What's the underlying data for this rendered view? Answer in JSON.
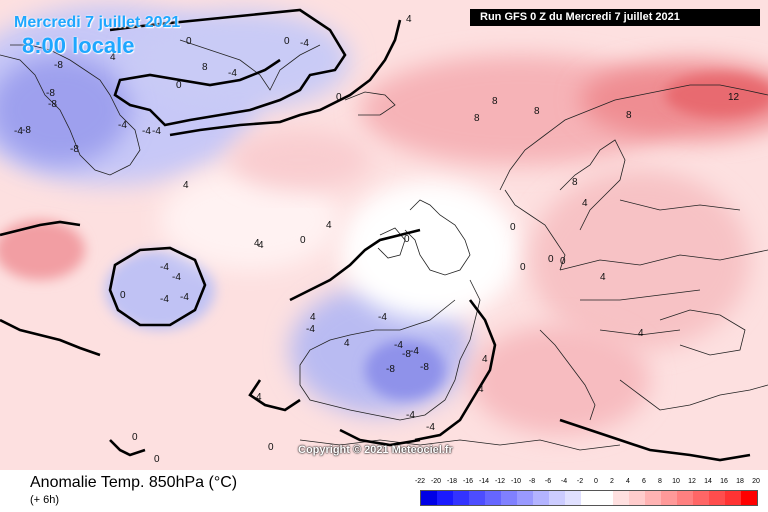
{
  "header": {
    "date_line": "Mercredi 7 juillet 2021",
    "local_time": "8:00 locale",
    "run_info": "Run GFS 0 Z du Mercredi 7 juillet 2021"
  },
  "footer": {
    "variable_title": "Anomalie Temp. 850hPa (°C)",
    "lead_time": "(+ 6h)",
    "copyright": "Copyright © 2021 Meteociel.fr"
  },
  "legend": {
    "ticks": [
      "-22",
      "-20",
      "-18",
      "-16",
      "-14",
      "-12",
      "-10",
      "-8",
      "-6",
      "-4",
      "-2",
      "0",
      "2",
      "4",
      "6",
      "8",
      "10",
      "12",
      "14",
      "16",
      "18",
      "20"
    ],
    "colors": [
      "#0000e6",
      "#1a1aff",
      "#3333ff",
      "#4d4dff",
      "#6666ff",
      "#8080ff",
      "#9999ff",
      "#b3b3ff",
      "#ccccff",
      "#e0e0ff",
      "#ffffff",
      "#ffffff",
      "#ffe0e0",
      "#ffcccc",
      "#ffb3b3",
      "#ff9999",
      "#ff8080",
      "#ff6666",
      "#ff4d4d",
      "#ff3333",
      "#ff0000"
    ]
  },
  "contour_labels": [
    {
      "text": "0"
    },
    {
      "text": "-8"
    },
    {
      "text": "-8"
    },
    {
      "text": "-8"
    },
    {
      "text": "-8"
    },
    {
      "text": "-8"
    },
    {
      "text": "-4"
    },
    {
      "text": "-4"
    },
    {
      "text": "-4"
    },
    {
      "text": "0"
    },
    {
      "text": "-4"
    },
    {
      "text": "-4"
    },
    {
      "text": "-4"
    },
    {
      "text": "-4"
    },
    {
      "text": "4"
    },
    {
      "text": "4"
    },
    {
      "text": "4"
    },
    {
      "text": "0"
    },
    {
      "text": "4"
    },
    {
      "text": "4"
    },
    {
      "text": "8"
    },
    {
      "text": "8"
    },
    {
      "text": "8"
    },
    {
      "text": "8"
    },
    {
      "text": "12"
    },
    {
      "text": "8"
    },
    {
      "text": "4"
    },
    {
      "text": "4"
    },
    {
      "text": "0"
    },
    {
      "text": "0"
    },
    {
      "text": "-4"
    },
    {
      "text": "-4"
    },
    {
      "text": "-4"
    },
    {
      "text": "-8"
    },
    {
      "text": "-8"
    },
    {
      "text": "-8"
    },
    {
      "text": "-4"
    },
    {
      "text": "-4"
    },
    {
      "text": "0"
    },
    {
      "text": "0"
    },
    {
      "text": "4"
    },
    {
      "text": "4"
    },
    {
      "text": "4"
    },
    {
      "text": "4"
    },
    {
      "text": "4"
    },
    {
      "text": "8"
    },
    {
      "text": "0"
    },
    {
      "text": "0"
    },
    {
      "text": "0"
    },
    {
      "text": "0"
    },
    {
      "text": "4"
    },
    {
      "text": "4"
    },
    {
      "text": "0"
    },
    {
      "text": "-4"
    },
    {
      "text": "0"
    },
    {
      "text": "0"
    },
    {
      "text": "-4"
    },
    {
      "text": "-4"
    },
    {
      "text": "-4"
    }
  ]
}
